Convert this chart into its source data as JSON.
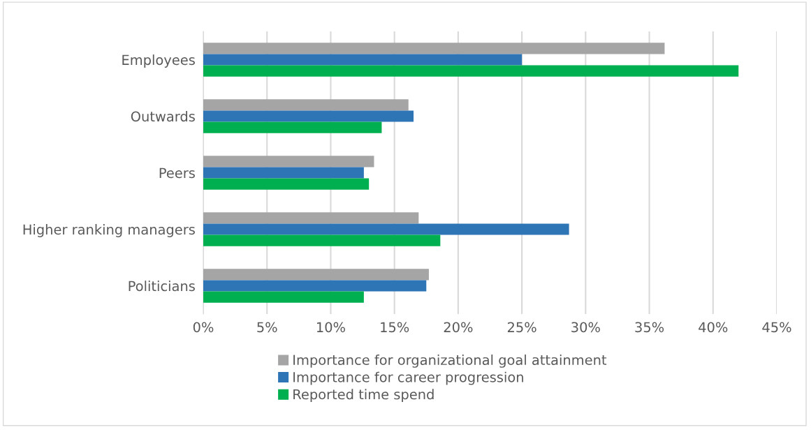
{
  "chart_data": {
    "type": "bar",
    "orientation": "horizontal",
    "categories": [
      "Employees",
      "Outwards",
      "Peers",
      "Higher ranking managers",
      "Politicians"
    ],
    "series": [
      {
        "name": "Importance for organizational goal attainment",
        "color": "#a5a5a5",
        "values": [
          36.2,
          16.1,
          13.4,
          16.9,
          17.7
        ]
      },
      {
        "name": "Importance for career progression",
        "color": "#2e75b6",
        "values": [
          25.0,
          16.5,
          12.6,
          28.7,
          17.5
        ]
      },
      {
        "name": "Reported time spend",
        "color": "#00b050",
        "values": [
          42.0,
          14.0,
          13.0,
          18.6,
          12.6
        ]
      }
    ],
    "xlim": [
      0,
      45
    ],
    "xticks": [
      {
        "value": 0,
        "label": "0%"
      },
      {
        "value": 5,
        "label": "5%"
      },
      {
        "value": 10,
        "label": "10%"
      },
      {
        "value": 15,
        "label": "15%"
      },
      {
        "value": 20,
        "label": "20%"
      },
      {
        "value": 25,
        "label": "25%"
      },
      {
        "value": 30,
        "label": "30%"
      },
      {
        "value": 35,
        "label": "35%"
      },
      {
        "value": 40,
        "label": "40%"
      },
      {
        "value": 45,
        "label": "45%"
      }
    ],
    "grid": "x",
    "legend": "bottom"
  }
}
